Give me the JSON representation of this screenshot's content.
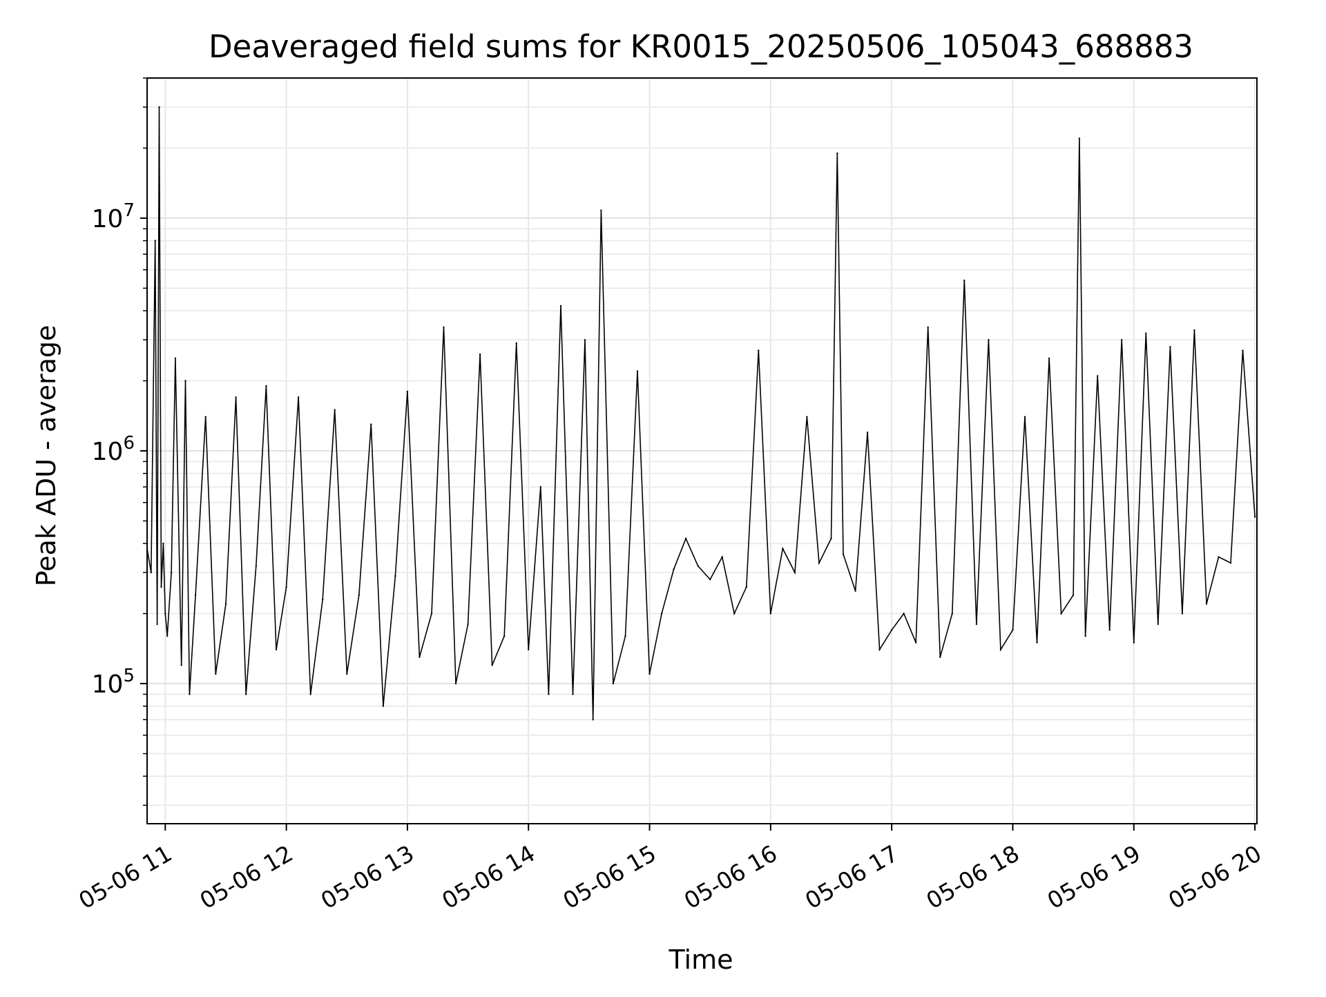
{
  "chart_data": {
    "type": "line",
    "title": "Deaveraged field sums for KR0015_20250506_105043_688883",
    "xlabel": "Time",
    "ylabel": "Peak ADU - average",
    "y_scale": "log",
    "xlim": [
      "2025-05-06 10:51",
      "2025-05-06 20:01"
    ],
    "ylim": [
      25000,
      40000000
    ],
    "grid": true,
    "line_color": "#000000",
    "x_ticks": [
      {
        "time": "2025-05-06 11:00",
        "label": "05-06 11"
      },
      {
        "time": "2025-05-06 12:00",
        "label": "05-06 12"
      },
      {
        "time": "2025-05-06 13:00",
        "label": "05-06 13"
      },
      {
        "time": "2025-05-06 14:00",
        "label": "05-06 14"
      },
      {
        "time": "2025-05-06 15:00",
        "label": "05-06 15"
      },
      {
        "time": "2025-05-06 16:00",
        "label": "05-06 16"
      },
      {
        "time": "2025-05-06 17:00",
        "label": "05-06 17"
      },
      {
        "time": "2025-05-06 18:00",
        "label": "05-06 18"
      },
      {
        "time": "2025-05-06 19:00",
        "label": "05-06 19"
      },
      {
        "time": "2025-05-06 20:00",
        "label": "05-06 20"
      }
    ],
    "y_ticks": [
      {
        "value": 100000,
        "base": "10",
        "exp": "5"
      },
      {
        "value": 1000000,
        "base": "10",
        "exp": "6"
      },
      {
        "value": 10000000,
        "base": "10",
        "exp": "7"
      }
    ],
    "series": [
      {
        "x": [
          "2025-05-06 10:51",
          "2025-05-06 10:53",
          "2025-05-06 10:55",
          "2025-05-06 10:56",
          "2025-05-06 10:57",
          "2025-05-06 10:58",
          "2025-05-06 10:59",
          "2025-05-06 11:00",
          "2025-05-06 11:01",
          "2025-05-06 11:03",
          "2025-05-06 11:05",
          "2025-05-06 11:08",
          "2025-05-06 11:10",
          "2025-05-06 11:12",
          "2025-05-06 11:15",
          "2025-05-06 11:20",
          "2025-05-06 11:25",
          "2025-05-06 11:30",
          "2025-05-06 11:35",
          "2025-05-06 11:40",
          "2025-05-06 11:45",
          "2025-05-06 11:50",
          "2025-05-06 11:55",
          "2025-05-06 12:00",
          "2025-05-06 12:06",
          "2025-05-06 12:12",
          "2025-05-06 12:18",
          "2025-05-06 12:24",
          "2025-05-06 12:30",
          "2025-05-06 12:36",
          "2025-05-06 12:42",
          "2025-05-06 12:48",
          "2025-05-06 12:54",
          "2025-05-06 13:00",
          "2025-05-06 13:06",
          "2025-05-06 13:12",
          "2025-05-06 13:18",
          "2025-05-06 13:24",
          "2025-05-06 13:30",
          "2025-05-06 13:36",
          "2025-05-06 13:42",
          "2025-05-06 13:48",
          "2025-05-06 13:54",
          "2025-05-06 14:00",
          "2025-05-06 14:06",
          "2025-05-06 14:10",
          "2025-05-06 14:16",
          "2025-05-06 14:22",
          "2025-05-06 14:28",
          "2025-05-06 14:32",
          "2025-05-06 14:36",
          "2025-05-06 14:42",
          "2025-05-06 14:48",
          "2025-05-06 14:54",
          "2025-05-06 15:00",
          "2025-05-06 15:06",
          "2025-05-06 15:12",
          "2025-05-06 15:18",
          "2025-05-06 15:24",
          "2025-05-06 15:30",
          "2025-05-06 15:36",
          "2025-05-06 15:42",
          "2025-05-06 15:48",
          "2025-05-06 15:54",
          "2025-05-06 16:00",
          "2025-05-06 16:06",
          "2025-05-06 16:12",
          "2025-05-06 16:18",
          "2025-05-06 16:24",
          "2025-05-06 16:30",
          "2025-05-06 16:33",
          "2025-05-06 16:36",
          "2025-05-06 16:42",
          "2025-05-06 16:48",
          "2025-05-06 16:54",
          "2025-05-06 17:00",
          "2025-05-06 17:06",
          "2025-05-06 17:12",
          "2025-05-06 17:18",
          "2025-05-06 17:24",
          "2025-05-06 17:30",
          "2025-05-06 17:36",
          "2025-05-06 17:42",
          "2025-05-06 17:48",
          "2025-05-06 17:54",
          "2025-05-06 18:00",
          "2025-05-06 18:06",
          "2025-05-06 18:12",
          "2025-05-06 18:18",
          "2025-05-06 18:24",
          "2025-05-06 18:30",
          "2025-05-06 18:33",
          "2025-05-06 18:36",
          "2025-05-06 18:42",
          "2025-05-06 18:48",
          "2025-05-06 18:54",
          "2025-05-06 19:00",
          "2025-05-06 19:06",
          "2025-05-06 19:12",
          "2025-05-06 19:18",
          "2025-05-06 19:24",
          "2025-05-06 19:30",
          "2025-05-06 19:36",
          "2025-05-06 19:42",
          "2025-05-06 19:48",
          "2025-05-06 19:54",
          "2025-05-06 20:00"
        ],
        "y": [
          380000,
          300000,
          8000000,
          180000,
          30000000,
          260000,
          400000,
          200000,
          160000,
          300000,
          2500000,
          120000,
          2000000,
          90000,
          240000,
          1400000,
          110000,
          220000,
          1700000,
          90000,
          320000,
          1900000,
          140000,
          260000,
          1700000,
          90000,
          230000,
          1500000,
          110000,
          240000,
          1300000,
          80000,
          290000,
          1800000,
          130000,
          200000,
          3400000,
          100000,
          180000,
          2600000,
          120000,
          160000,
          2900000,
          140000,
          700000,
          90000,
          4200000,
          90000,
          3000000,
          70000,
          10800000,
          100000,
          160000,
          2200000,
          110000,
          200000,
          310000,
          420000,
          320000,
          280000,
          350000,
          200000,
          260000,
          2700000,
          200000,
          380000,
          300000,
          1400000,
          330000,
          420000,
          19000000,
          360000,
          250000,
          1200000,
          140000,
          170000,
          200000,
          150000,
          3400000,
          130000,
          200000,
          5400000,
          180000,
          3000000,
          140000,
          170000,
          1400000,
          150000,
          2500000,
          200000,
          240000,
          22000000,
          160000,
          2100000,
          170000,
          3000000,
          150000,
          3200000,
          180000,
          2800000,
          200000,
          3300000,
          220000,
          350000,
          330000,
          2700000,
          520000
        ]
      }
    ]
  }
}
